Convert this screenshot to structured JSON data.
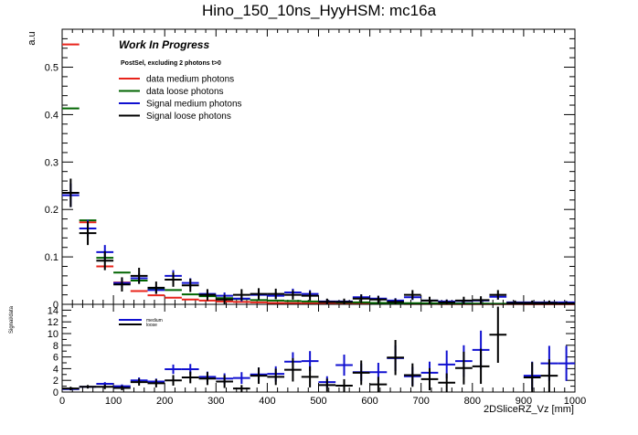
{
  "chart_data": [
    {
      "type": "histogram",
      "title": "Hino_150_10ns_HyyHSM: mc16a",
      "ylabel": "a.u",
      "xlim": [
        0,
        1000
      ],
      "ylim": [
        0,
        0.58
      ],
      "bin_width": 33.33,
      "xticks": [
        "0",
        "100",
        "200",
        "300",
        "400",
        "500",
        "600",
        "700",
        "800",
        "900",
        "1000"
      ],
      "yticks": [
        "0",
        "0.1",
        "0.2",
        "0.3",
        "0.4",
        "0.5"
      ],
      "annotation": "Work In Progress",
      "selection": "PostSel, excluding 2 photons t>0",
      "legend": [
        "data medium photons",
        "data loose photons",
        "Signal medium photons",
        "Signal loose photons"
      ],
      "series": [
        {
          "name": "data medium photons",
          "color": "#e8231a",
          "values": [
            0.548,
            0.173,
            0.08,
            0.046,
            0.028,
            0.019,
            0.014,
            0.01,
            0.008,
            0.006,
            0.005,
            0.004,
            0.003,
            0.0025,
            0.002,
            0.0018,
            0.0015,
            0.0012,
            0.001,
            0.0009,
            0.0008,
            0.0007,
            0.0006,
            0.0005,
            0.0005,
            0.0004,
            0.0004,
            0.0003,
            0.0003,
            0.0003
          ]
        },
        {
          "name": "data loose photons",
          "color": "#006400",
          "values": [
            0.413,
            0.177,
            0.098,
            0.067,
            0.05,
            0.032,
            0.03,
            0.021,
            0.017,
            0.013,
            0.011,
            0.009,
            0.008,
            0.007,
            0.006,
            0.005,
            0.004,
            0.004,
            0.003,
            0.003,
            0.0025,
            0.0022,
            0.002,
            0.0018,
            0.0015,
            0.0013,
            0.0012,
            0.001,
            0.001,
            0.0009
          ]
        },
        {
          "name": "Signal medium photons",
          "color": "#1010d0",
          "values": [
            0.23,
            0.16,
            0.11,
            0.045,
            0.055,
            0.03,
            0.06,
            0.045,
            0.022,
            0.018,
            0.012,
            0.02,
            0.018,
            0.025,
            0.022,
            0.006,
            0.006,
            0.015,
            0.012,
            0.008,
            0.015,
            0.008,
            0.006,
            0.007,
            0.008,
            0.016,
            0.004,
            0.004,
            0.004,
            0.004
          ],
          "errors": [
            0.025,
            0.018,
            0.015,
            0.01,
            0.01,
            0.008,
            0.012,
            0.01,
            0.008,
            0.007,
            0.006,
            0.008,
            0.007,
            0.008,
            0.008,
            0.005,
            0.005,
            0.006,
            0.006,
            0.005,
            0.006,
            0.005,
            0.004,
            0.005,
            0.005,
            0.006,
            0.003,
            0.003,
            0.003,
            0.003
          ]
        },
        {
          "name": "Signal loose photons",
          "color": "#000000",
          "values": [
            0.235,
            0.15,
            0.092,
            0.042,
            0.06,
            0.035,
            0.052,
            0.04,
            0.02,
            0.01,
            0.02,
            0.022,
            0.022,
            0.02,
            0.018,
            0.005,
            0.005,
            0.012,
            0.01,
            0.005,
            0.02,
            0.008,
            0.004,
            0.008,
            0.009,
            0.02,
            0.003,
            0.003,
            0.003,
            0.002
          ],
          "errors": [
            0.03,
            0.025,
            0.02,
            0.015,
            0.017,
            0.013,
            0.015,
            0.014,
            0.012,
            0.01,
            0.012,
            0.012,
            0.011,
            0.01,
            0.01,
            0.007,
            0.007,
            0.009,
            0.008,
            0.007,
            0.01,
            0.008,
            0.006,
            0.008,
            0.008,
            0.01,
            0.005,
            0.005,
            0.005,
            0.004
          ]
        }
      ]
    },
    {
      "type": "ratio",
      "xlabel": "2DSliceRZ_Vz [mm]",
      "ylabel": "Signal/data",
      "xlim": [
        0,
        1000
      ],
      "ylim": [
        0,
        15
      ],
      "bin_width": 33.33,
      "xticks": [
        "0",
        "100",
        "200",
        "300",
        "400",
        "500",
        "600",
        "700",
        "800",
        "900",
        "1000"
      ],
      "yticks": [
        "0",
        "2",
        "4",
        "6",
        "8",
        "10",
        "12",
        "14"
      ],
      "legend": [
        "medium",
        "loose"
      ],
      "series": [
        {
          "name": "medium",
          "color": "#1010d0",
          "bins": [
            0,
            1,
            2,
            3,
            4,
            5,
            6,
            7,
            8,
            9,
            10,
            11,
            12,
            13,
            14,
            15,
            16,
            17,
            18,
            19,
            20,
            21,
            22,
            23,
            24,
            27,
            28,
            29
          ],
          "values": [
            0.5,
            0.9,
            1.4,
            1.0,
            2.0,
            1.8,
            3.9,
            3.9,
            2.6,
            2.3,
            2.4,
            3.0,
            3.1,
            5.2,
            5.3,
            1.7,
            4.6,
            3.4,
            3.4,
            5.8,
            2.7,
            3.3,
            4.7,
            5.3,
            7.2,
            2.8,
            4.9,
            4.9
          ],
          "errors": [
            0.2,
            0.2,
            0.3,
            0.3,
            0.5,
            0.5,
            0.8,
            0.9,
            0.9,
            0.9,
            1.0,
            1.2,
            1.3,
            1.6,
            1.7,
            1.0,
            1.8,
            1.5,
            1.6,
            2.2,
            1.6,
            1.9,
            2.4,
            2.7,
            3.3,
            2.4,
            3.0,
            3.0
          ]
        },
        {
          "name": "loose",
          "color": "#000000",
          "bins": [
            0,
            1,
            2,
            3,
            4,
            5,
            6,
            7,
            8,
            9,
            10,
            11,
            12,
            13,
            14,
            15,
            16,
            17,
            18,
            19,
            20,
            21,
            22,
            23,
            24,
            25,
            27,
            28
          ],
          "values": [
            0.6,
            0.9,
            0.9,
            0.7,
            1.7,
            1.5,
            2.0,
            2.5,
            2.3,
            1.8,
            0.6,
            2.8,
            2.6,
            3.8,
            2.6,
            1.2,
            1.1,
            3.3,
            1.3,
            5.9,
            2.9,
            2.2,
            1.6,
            4.1,
            4.4,
            9.8,
            2.5,
            2.8
          ],
          "errors": [
            0.3,
            0.3,
            0.4,
            0.4,
            0.6,
            0.7,
            0.9,
            1.0,
            1.1,
            1.1,
            0.6,
            1.4,
            1.4,
            2.0,
            1.8,
            1.1,
            1.1,
            2.1,
            1.3,
            3.0,
            2.0,
            1.9,
            1.6,
            2.8,
            3.0,
            4.8,
            2.6,
            2.8
          ]
        }
      ]
    }
  ]
}
